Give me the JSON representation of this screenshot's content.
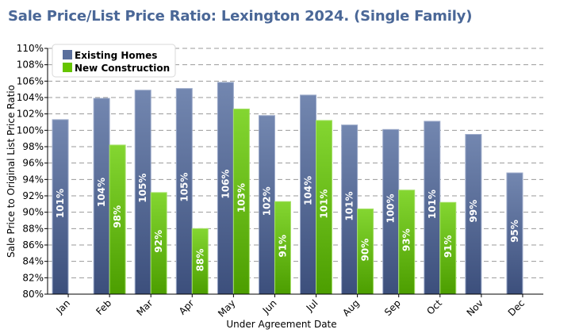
{
  "chart_data": {
    "type": "bar",
    "title": "Sale Price/List Price Ratio: Lexington 2024. (Single Family)",
    "xlabel": "Under Agreement Date",
    "ylabel": "Sale Price to Original List Price Ratio",
    "ylim": [
      80,
      110
    ],
    "ytick_step": 2,
    "yticks": [
      "80%",
      "82%",
      "84%",
      "86%",
      "88%",
      "90%",
      "92%",
      "94%",
      "96%",
      "98%",
      "100%",
      "102%",
      "104%",
      "106%",
      "108%",
      "110%"
    ],
    "grid": true,
    "legend_position": "top-left",
    "categories": [
      "Jan",
      "Feb",
      "Mar",
      "Apr",
      "May",
      "Jun",
      "Jul",
      "Aug",
      "Sep",
      "Oct",
      "Nov",
      "Dec"
    ],
    "series": [
      {
        "name": "Existing Homes",
        "color_top": "#7387b0",
        "color_bottom": "#3c4f7c",
        "values": [
          101.3,
          103.9,
          104.9,
          105.1,
          105.85,
          101.8,
          104.3,
          100.65,
          100.1,
          101.1,
          99.5,
          94.8
        ],
        "labels": [
          "101%",
          "104%",
          "105%",
          "105%",
          "106%",
          "102%",
          "104%",
          "101%",
          "100%",
          "101%",
          "99%",
          "95%"
        ]
      },
      {
        "name": "New Construction",
        "color_top": "#84d631",
        "color_bottom": "#4c9e00",
        "values": [
          null,
          98.2,
          92.4,
          88.0,
          102.6,
          91.3,
          101.2,
          90.4,
          92.7,
          91.2,
          null,
          null
        ],
        "labels": [
          null,
          "98%",
          "92%",
          "88%",
          "103%",
          "91%",
          "101%",
          "90%",
          "93%",
          "91%",
          null,
          null
        ]
      }
    ]
  }
}
